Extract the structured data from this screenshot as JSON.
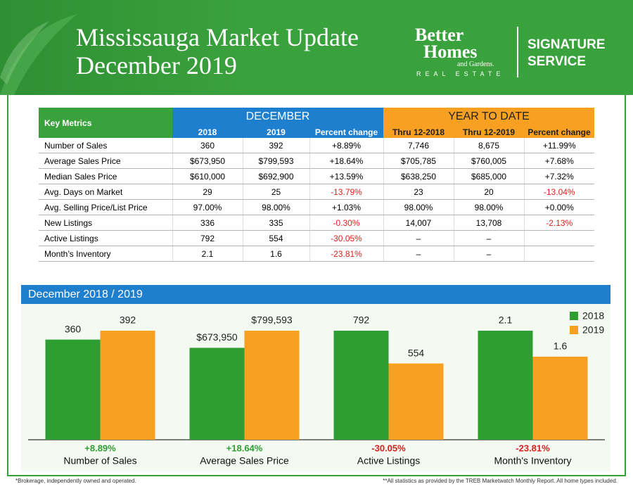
{
  "header": {
    "title_line1": "Mississauga Market Update",
    "title_line2": "December 2019",
    "logo_better": "Better",
    "logo_homes": "Homes",
    "logo_gardens": "and Gardens.",
    "logo_re": "REAL ESTATE",
    "logo_sig1": "SIGNATURE",
    "logo_sig2": "SERVICE"
  },
  "table": {
    "corner": "Key Metrics",
    "group1": "DECEMBER",
    "group2": "YEAR TO DATE",
    "columns": [
      "2018",
      "2019",
      "Percent change",
      "Thru 12-2018",
      "Thru 12-2019",
      "Percent change"
    ],
    "rows": [
      [
        "Number of Sales",
        "360",
        "392",
        "+8.89%",
        "7,746",
        "8,675",
        "+11.99%"
      ],
      [
        "Average Sales Price",
        "$673,950",
        "$799,593",
        "+18.64%",
        "$705,785",
        "$760,005",
        "+7.68%"
      ],
      [
        "Median Sales Price",
        "$610,000",
        "$692,900",
        "+13.59%",
        "$638,250",
        "$685,000",
        "+7.32%"
      ],
      [
        "Avg. Days on Market",
        "29",
        "25",
        "-13.79%",
        "23",
        "20",
        "-13.04%"
      ],
      [
        "Avg. Selling Price/List Price",
        "97.00%",
        "98.00%",
        "+1.03%",
        "98.00%",
        "98.00%",
        "+0.00%"
      ],
      [
        "New Listings",
        "336",
        "335",
        "-0.30%",
        "14,007",
        "13,708",
        "-2.13%"
      ],
      [
        "Active Listings",
        "792",
        "554",
        "-30.05%",
        "–",
        "–",
        ""
      ],
      [
        "Month’s Inventory",
        "2.1",
        "1.6",
        "-23.81%",
        "–",
        "–",
        ""
      ]
    ]
  },
  "chart_data": {
    "type": "bar",
    "title": "December 2018 / 2019",
    "categories": [
      "Number of Sales",
      "Average Sales Price",
      "Active Listings",
      "Month's Inventory"
    ],
    "change_labels": [
      "+8.89%",
      "+18.64%",
      "-30.05%",
      "-23.81%"
    ],
    "series": [
      {
        "name": "2018",
        "color": "#2e9e33",
        "values": [
          360,
          673950,
          792,
          2.1
        ],
        "value_labels": [
          "360",
          "$673,950",
          "792",
          "2.1"
        ]
      },
      {
        "name": "2019",
        "color": "#f7a021",
        "values": [
          392,
          799593,
          554,
          1.6
        ],
        "value_labels": [
          "392",
          "$799,593",
          "554",
          "1.6"
        ]
      }
    ]
  },
  "footer": {
    "left": "*Brokerage, independently owned and operated.",
    "right": "**All statistics as provided by the TREB Marketwatch Monthly Report. All home types included."
  }
}
